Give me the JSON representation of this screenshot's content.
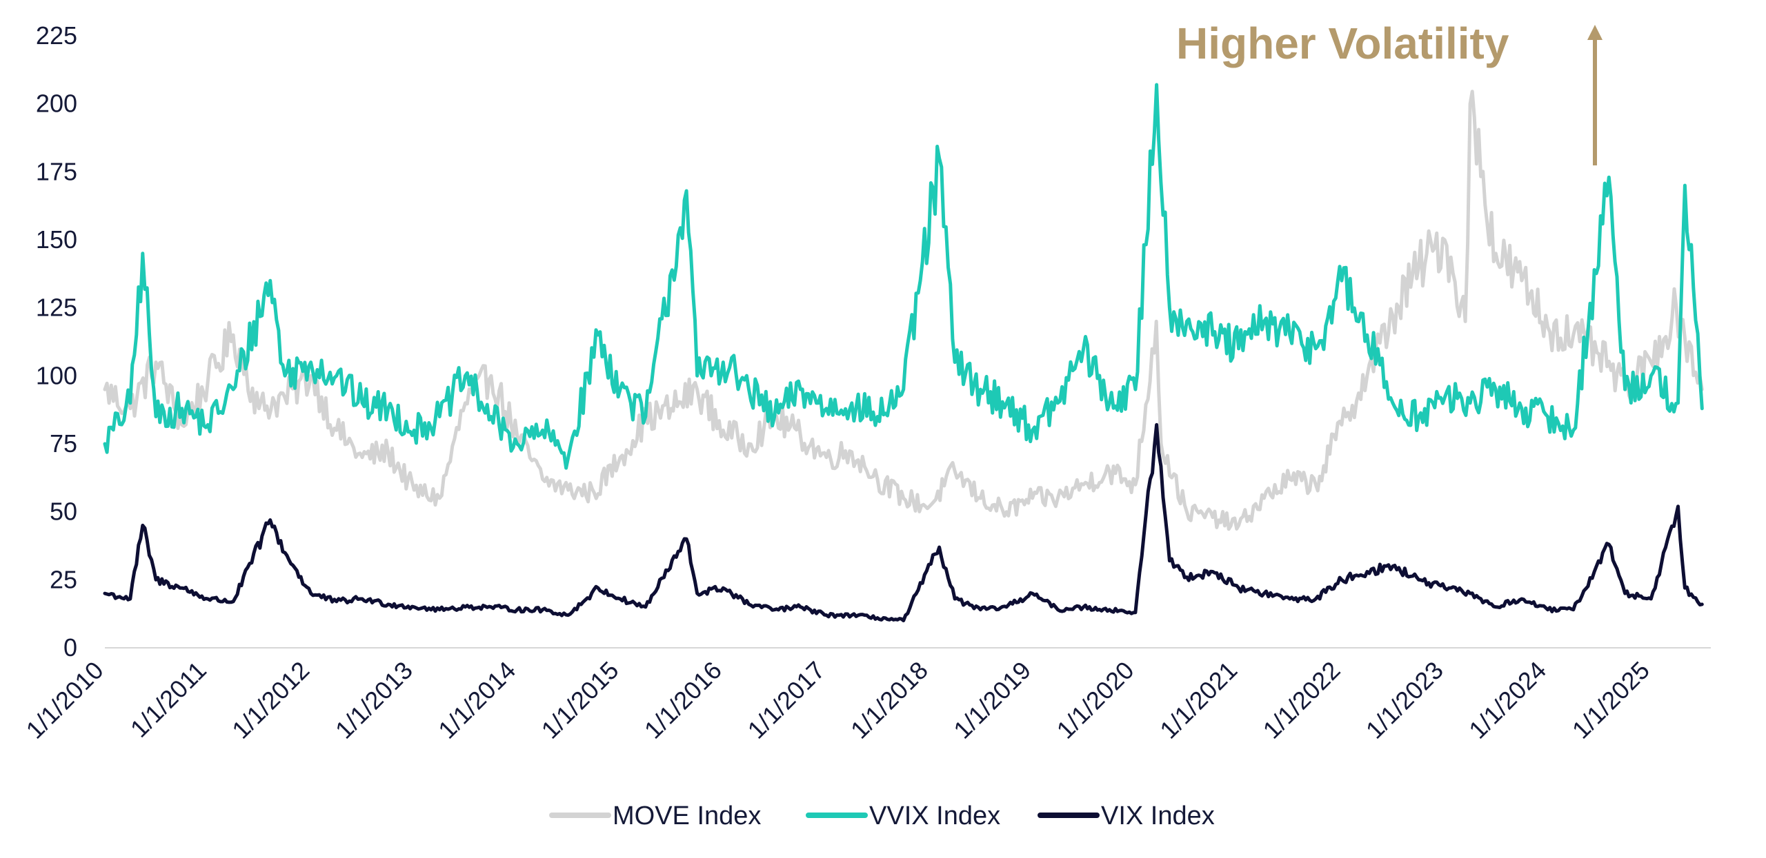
{
  "chart_data": {
    "type": "line",
    "title": "",
    "xlabel": "",
    "ylabel": "",
    "ylim": [
      0,
      225
    ],
    "xlim": [
      "2010-01-01",
      "2025-08-01"
    ],
    "grid": false,
    "legend_position": "bottom-center",
    "y_ticks": [
      "0",
      "25",
      "50",
      "75",
      "100",
      "125",
      "150",
      "175",
      "200",
      "225"
    ],
    "x_ticks": [
      "1/1/2010",
      "1/1/2011",
      "1/1/2012",
      "1/1/2013",
      "1/1/2014",
      "1/1/2015",
      "1/1/2016",
      "1/1/2017",
      "1/1/2018",
      "1/1/2019",
      "1/1/2020",
      "1/1/2021",
      "1/1/2022",
      "1/1/2023",
      "1/1/2024",
      "1/1/2025"
    ],
    "annotation": {
      "text": "Higher Volatility",
      "color": "#B49A6C",
      "arrow": "up"
    },
    "series": [
      {
        "name": "MOVE Index",
        "color": "#D3D3D3",
        "x": [
          "2010-01-01",
          "2010-04-01",
          "2010-07-01",
          "2010-10-01",
          "2011-01-01",
          "2011-04-01",
          "2011-07-01",
          "2011-10-01",
          "2012-01-01",
          "2012-04-01",
          "2012-07-01",
          "2012-10-01",
          "2013-01-01",
          "2013-04-01",
          "2013-07-01",
          "2013-10-01",
          "2014-01-01",
          "2014-04-01",
          "2014-07-01",
          "2014-10-01",
          "2015-01-01",
          "2015-04-01",
          "2015-07-01",
          "2015-10-01",
          "2016-01-01",
          "2016-04-01",
          "2016-07-01",
          "2016-10-01",
          "2017-01-01",
          "2017-04-01",
          "2017-07-01",
          "2017-10-01",
          "2018-01-01",
          "2018-04-01",
          "2018-07-01",
          "2018-10-01",
          "2019-01-01",
          "2019-04-01",
          "2019-07-01",
          "2019-10-01",
          "2020-01-01",
          "2020-03-15",
          "2020-04-01",
          "2020-07-01",
          "2020-10-01",
          "2021-01-01",
          "2021-04-01",
          "2021-07-01",
          "2021-10-01",
          "2022-01-01",
          "2022-04-01",
          "2022-07-01",
          "2022-10-01",
          "2023-01-01",
          "2023-03-15",
          "2023-04-01",
          "2023-07-01",
          "2023-10-01",
          "2024-01-01",
          "2024-04-01",
          "2024-07-01",
          "2024-10-01",
          "2025-01-01",
          "2025-04-01",
          "2025-07-01"
        ],
        "values": [
          95,
          88,
          105,
          82,
          98,
          115,
          88,
          92,
          100,
          80,
          70,
          72,
          58,
          55,
          90,
          100,
          78,
          62,
          58,
          57,
          70,
          84,
          88,
          95,
          80,
          75,
          85,
          78,
          70,
          72,
          62,
          55,
          52,
          65,
          55,
          50,
          55,
          55,
          60,
          65,
          60,
          120,
          75,
          50,
          48,
          45,
          55,
          62,
          60,
          82,
          100,
          122,
          140,
          150,
          120,
          200,
          145,
          135,
          118,
          115,
          108,
          95,
          105,
          125,
          95
        ]
      },
      {
        "name": "VVIX Index",
        "color": "#1EC9B5",
        "x": [
          "2010-01-01",
          "2010-04-01",
          "2010-05-15",
          "2010-07-01",
          "2010-10-01",
          "2011-01-01",
          "2011-04-01",
          "2011-08-10",
          "2011-10-01",
          "2012-01-01",
          "2012-04-01",
          "2012-07-01",
          "2012-10-01",
          "2013-01-01",
          "2013-04-01",
          "2013-07-01",
          "2013-10-01",
          "2014-01-01",
          "2014-04-01",
          "2014-07-01",
          "2014-10-15",
          "2015-01-01",
          "2015-04-01",
          "2015-08-24",
          "2015-10-01",
          "2016-01-01",
          "2016-04-01",
          "2016-07-01",
          "2016-10-01",
          "2017-01-01",
          "2017-04-01",
          "2017-07-01",
          "2017-10-01",
          "2018-02-05",
          "2018-04-01",
          "2018-07-01",
          "2018-10-01",
          "2019-01-01",
          "2019-04-01",
          "2019-07-01",
          "2019-10-01",
          "2020-01-01",
          "2020-03-16",
          "2020-05-01",
          "2020-07-01",
          "2020-10-01",
          "2021-01-01",
          "2021-04-01",
          "2021-07-01",
          "2021-10-01",
          "2022-01-01",
          "2022-04-01",
          "2022-07-01",
          "2022-10-01",
          "2023-01-01",
          "2023-04-01",
          "2023-07-01",
          "2023-10-01",
          "2024-01-01",
          "2024-04-01",
          "2024-08-05",
          "2024-10-01",
          "2025-01-01",
          "2025-04-07",
          "2025-05-01",
          "2025-07-01"
        ],
        "values": [
          75,
          90,
          145,
          85,
          88,
          82,
          95,
          135,
          100,
          105,
          100,
          90,
          88,
          80,
          85,
          100,
          85,
          75,
          80,
          70,
          115,
          95,
          85,
          168,
          100,
          105,
          95,
          85,
          95,
          88,
          90,
          85,
          95,
          180,
          105,
          95,
          90,
          80,
          90,
          110,
          90,
          95,
          207,
          125,
          120,
          115,
          110,
          120,
          115,
          110,
          135,
          115,
          90,
          85,
          92,
          90,
          95,
          88,
          85,
          80,
          173,
          95,
          100,
          90,
          170,
          88
        ]
      },
      {
        "name": "VIX Index",
        "color": "#0D0E33",
        "x": [
          "2010-01-01",
          "2010-04-01",
          "2010-05-15",
          "2010-07-01",
          "2010-10-01",
          "2011-01-01",
          "2011-04-01",
          "2011-08-10",
          "2011-10-01",
          "2012-01-01",
          "2012-04-01",
          "2012-07-01",
          "2012-10-01",
          "2013-01-01",
          "2013-04-01",
          "2013-07-01",
          "2013-10-01",
          "2014-01-01",
          "2014-04-01",
          "2014-07-01",
          "2014-10-15",
          "2015-01-01",
          "2015-04-01",
          "2015-08-24",
          "2015-10-01",
          "2016-01-01",
          "2016-04-01",
          "2016-07-01",
          "2016-10-01",
          "2017-01-01",
          "2017-04-01",
          "2017-07-01",
          "2017-10-01",
          "2018-02-05",
          "2018-04-01",
          "2018-07-01",
          "2018-10-01",
          "2019-01-01",
          "2019-04-01",
          "2019-07-01",
          "2019-10-01",
          "2020-01-01",
          "2020-03-16",
          "2020-05-01",
          "2020-07-01",
          "2020-10-01",
          "2021-01-01",
          "2021-04-01",
          "2021-07-01",
          "2021-10-01",
          "2022-01-01",
          "2022-04-01",
          "2022-07-01",
          "2022-10-01",
          "2023-01-01",
          "2023-04-01",
          "2023-07-01",
          "2023-10-01",
          "2024-01-01",
          "2024-04-01",
          "2024-08-05",
          "2024-10-01",
          "2025-01-01",
          "2025-04-07",
          "2025-05-01",
          "2025-07-01"
        ],
        "values": [
          20,
          18,
          45,
          25,
          22,
          18,
          17,
          47,
          35,
          20,
          17,
          18,
          16,
          15,
          14,
          15,
          15,
          14,
          14,
          12,
          22,
          18,
          15,
          40,
          20,
          22,
          16,
          14,
          15,
          12,
          12,
          11,
          10,
          37,
          18,
          14,
          15,
          20,
          14,
          15,
          14,
          13,
          82,
          32,
          26,
          28,
          22,
          20,
          18,
          18,
          25,
          28,
          30,
          25,
          22,
          20,
          15,
          18,
          14,
          14,
          38,
          20,
          18,
          52,
          22,
          16
        ]
      }
    ]
  }
}
